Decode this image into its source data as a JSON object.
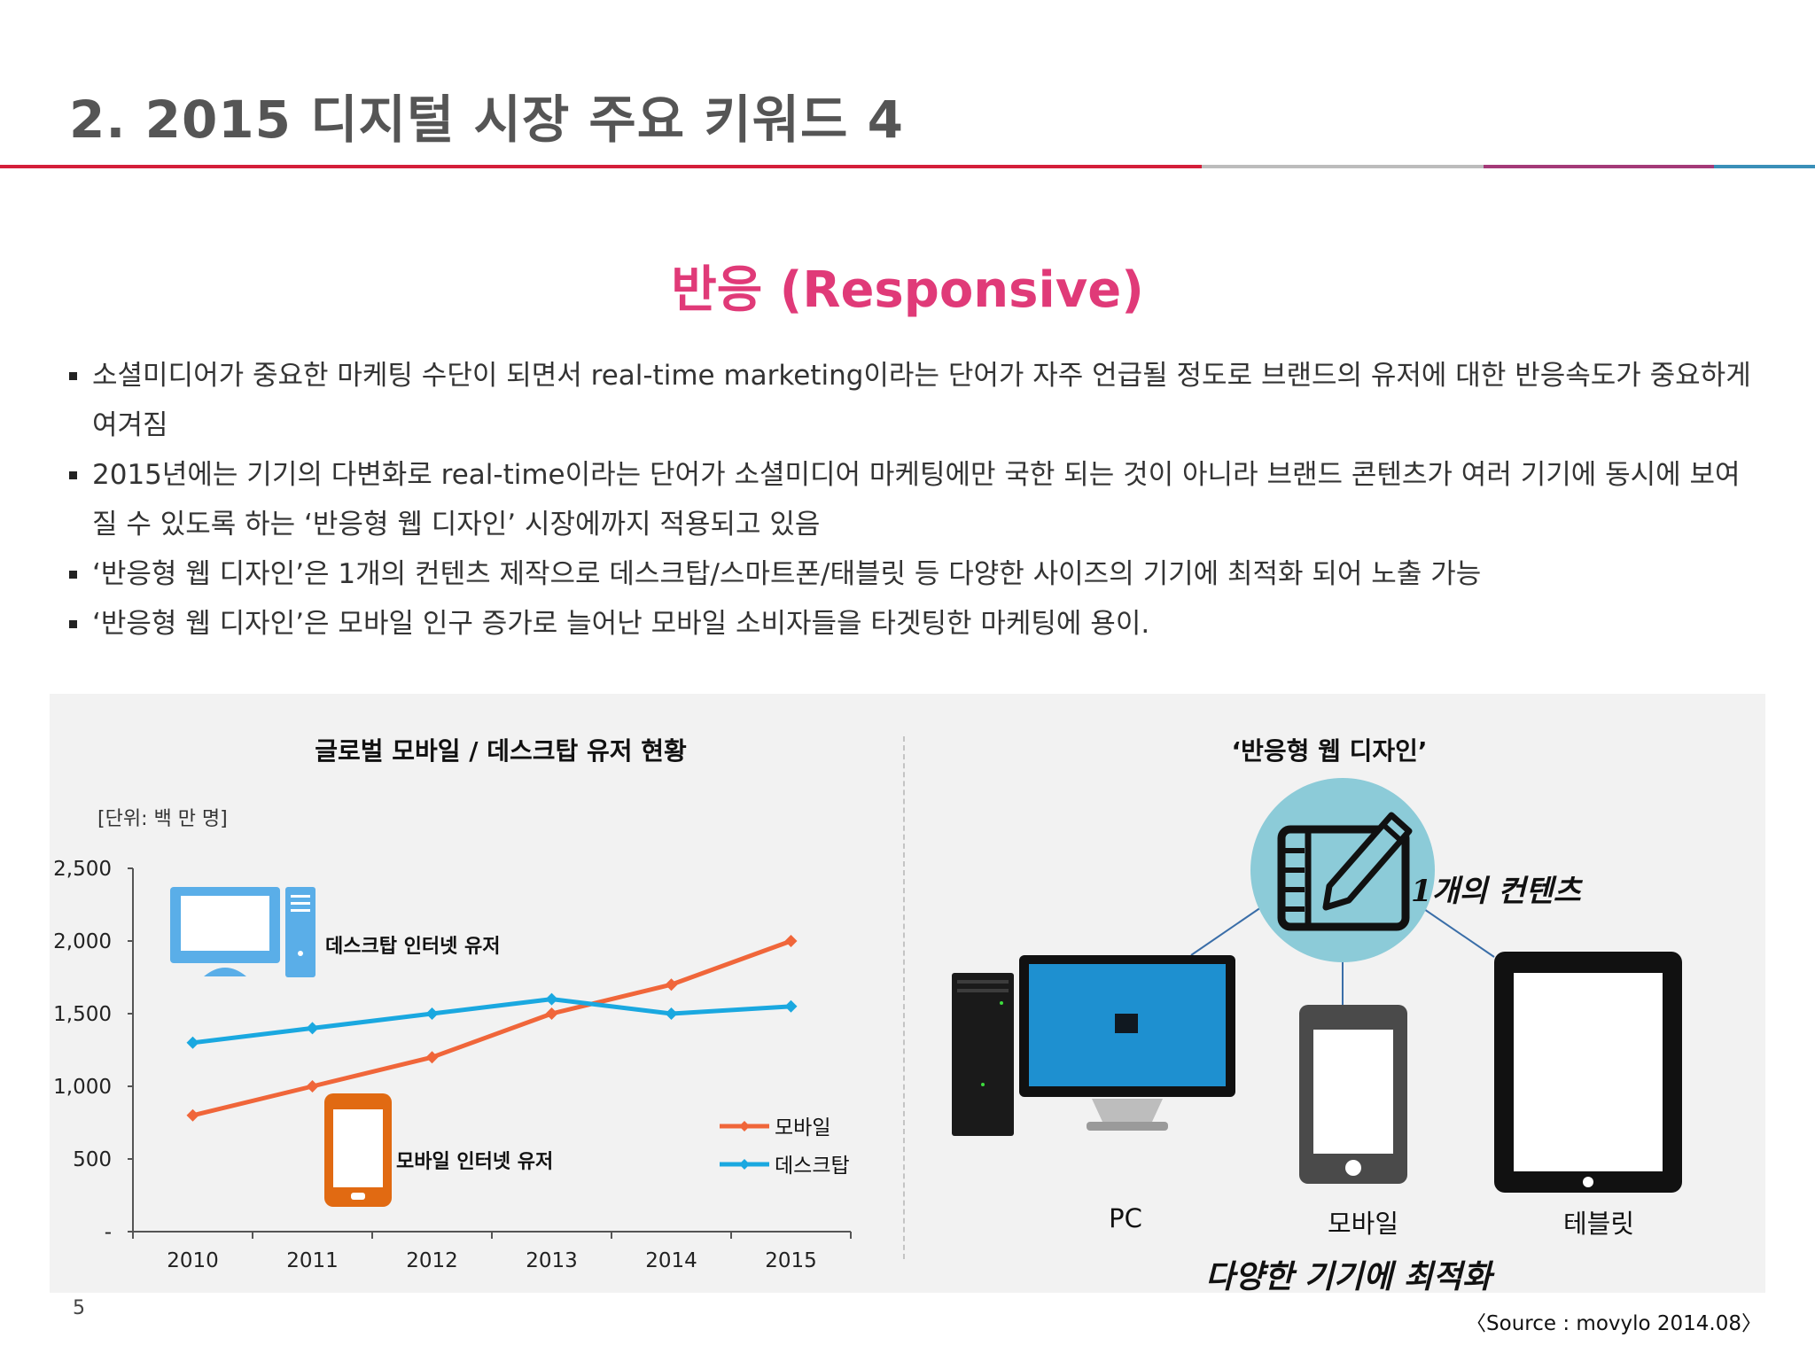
{
  "slide": {
    "title": "2. 2015 디지털 시장 주요 키워드 4",
    "page_number": "5",
    "source": "Source : movylo 2014.08",
    "accent_colors": [
      "#d41f3a",
      "#bcbcbc",
      "#a43a78",
      "#3a8fb8"
    ]
  },
  "headline": "반응 (Responsive)",
  "bullets": [
    "소셜미디어가 중요한 마케팅 수단이 되면서 real-time marketing이라는 단어가 자주 언급될 정도로 브랜드의 유저에 대한 반응속도가 중요하게 여겨짐",
    "2015년에는 기기의 다변화로 real-time이라는 단어가 소셜미디어 마케팅에만 국한 되는 것이 아니라 브랜드 콘텐츠가 여러 기기에 동시에 보여질 수 있도록 하는 ‘반응형 웹 디자인’ 시장에까지 적용되고 있음",
    "‘반응형 웹 디자인’은 1개의 컨텐츠 제작으로 데스크탑/스마트폰/태블릿 등 다양한 사이즈의 기기에 최적화 되어 노출 가능",
    "‘반응형 웹 디자인’은 모바일 인구 증가로 늘어난 모바일 소비자들을 타겟팅한 마케팅에 용이."
  ],
  "chart_data": {
    "type": "line",
    "title": "글로벌 모바일 / 데스크탑 유저 현황",
    "unit_label": "[단위: 백 만 명]",
    "categories": [
      "2010",
      "2011",
      "2012",
      "2013",
      "2014",
      "2015"
    ],
    "y_ticks": [
      "2,500",
      "2,000",
      "1,500",
      "1,000",
      "500",
      "-"
    ],
    "y_tick_values": [
      2500,
      2000,
      1500,
      1000,
      500,
      0
    ],
    "ylim": [
      0,
      2500
    ],
    "series": [
      {
        "name": "모바일",
        "color": "#f0663a",
        "values": [
          800,
          1000,
          1200,
          1500,
          1700,
          2000
        ]
      },
      {
        "name": "데스크탑",
        "color": "#1aa8e0",
        "values": [
          1300,
          1400,
          1500,
          1600,
          1500,
          1550
        ]
      }
    ],
    "annotations": [
      "데스크탑 인터넷 유저",
      "모바일 인터넷 유저"
    ],
    "legend_position": "bottom-right"
  },
  "responsive": {
    "title": "‘반응형 웹 디자인’",
    "content_label": "1개의 컨텐츠",
    "devices": [
      "PC",
      "모바일",
      "테블릿"
    ],
    "optimize_label": "다양한 기기에 최적화"
  }
}
